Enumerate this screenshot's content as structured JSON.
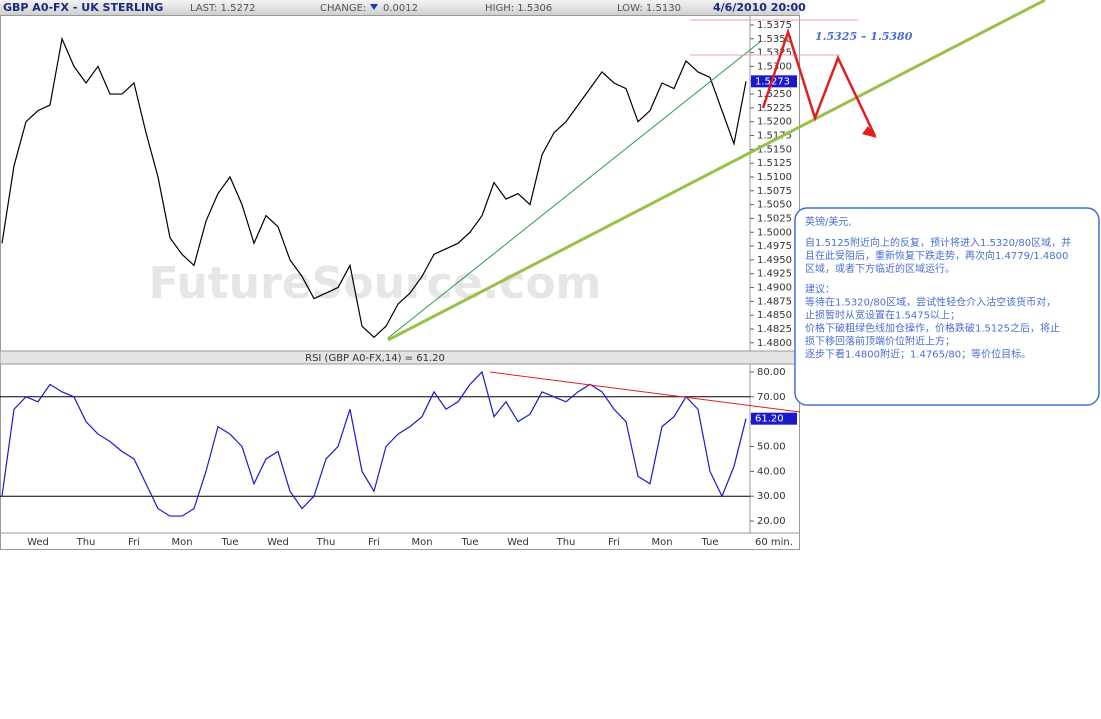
{
  "header": {
    "symbol": "GBP A0-FX - UK STERLING",
    "last": "LAST: 1.5272",
    "change_label": "CHANGE:",
    "change": "0.0012",
    "high": "HIGH: 1.5306",
    "low": "LOW: 1.5130",
    "datetime": "4/6/2010 20:00"
  },
  "watermark": "FutureSource.com",
  "annotation": "1.5325 – 1.5380",
  "note": [
    "英镑/美元,",
    "自1.5125附近向上的反复，预计将进入1.5320/80区域，并",
    "且在此受阻后，重新恢复下跌走势，再次向1.4779/1.4800",
    "区域，或者下方临近的区域运行。",
    "建议：",
    "等待在1.5320/80区域，尝试性轻仓介入沽空该货币对，",
    "止损暂时从宽设置在1.5475以上；",
    "价格下破粗绿色线加仓操作，价格跌破1.5125之后，将止",
    "损下移回落前顶端价位附近上方；",
    "逐步下看1.4800附近；1.4765/80；等价位目标。"
  ],
  "chart_data": [
    {
      "type": "line",
      "color": "#000000",
      "last_label": "1.5273",
      "values": [
        1.498,
        1.512,
        1.52,
        1.522,
        1.523,
        1.535,
        1.53,
        1.527,
        1.53,
        1.525,
        1.525,
        1.527,
        1.518,
        1.51,
        1.499,
        1.496,
        1.494,
        1.502,
        1.507,
        1.51,
        1.505,
        1.498,
        1.503,
        1.501,
        1.495,
        1.492,
        1.488,
        1.489,
        1.49,
        1.494,
        1.483,
        1.481,
        1.483,
        1.487,
        1.489,
        1.492,
        1.496,
        1.497,
        1.498,
        1.5,
        1.503,
        1.509,
        1.506,
        1.507,
        1.505,
        1.514,
        1.518,
        1.52,
        1.523,
        1.526,
        1.529,
        1.527,
        1.526,
        1.52,
        1.522,
        1.527,
        1.526,
        1.531,
        1.529,
        1.528,
        1.522,
        1.516,
        1.5273
      ],
      "ylim": [
        1.4787,
        1.5393
      ],
      "yticks": [
        {
          "value": 1.48,
          "label": "1.4800"
        },
        {
          "value": 1.4825,
          "label": "1.4825"
        },
        {
          "value": 1.485,
          "label": "1.4850"
        },
        {
          "value": 1.4875,
          "label": "1.4875"
        },
        {
          "value": 1.49,
          "label": "1.4900"
        },
        {
          "value": 1.4925,
          "label": "1.4925"
        },
        {
          "value": 1.495,
          "label": "1.4950"
        },
        {
          "value": 1.4975,
          "label": "1.4975"
        },
        {
          "value": 1.5,
          "label": "1.5000"
        },
        {
          "value": 1.5025,
          "label": "1.5025"
        },
        {
          "value": 1.505,
          "label": "1.5050"
        },
        {
          "value": 1.5075,
          "label": "1.5075"
        },
        {
          "value": 1.51,
          "label": "1.5100"
        },
        {
          "value": 1.5125,
          "label": "1.5125"
        },
        {
          "value": 1.515,
          "label": "1.5150"
        },
        {
          "value": 1.5175,
          "label": "1.5175"
        },
        {
          "value": 1.52,
          "label": "1.5200"
        },
        {
          "value": 1.5225,
          "label": "1.5225"
        },
        {
          "value": 1.525,
          "label": "1.5250"
        },
        {
          "value": 1.5275,
          "label": "1.5275"
        },
        {
          "value": 1.53,
          "label": "1.5300"
        },
        {
          "value": 1.5325,
          "label": "1.5325"
        },
        {
          "value": 1.535,
          "label": "1.5350"
        },
        {
          "value": 1.5375,
          "label": "1.5375"
        }
      ]
    },
    {
      "type": "line",
      "title": "RSI (GBP A0-FX,14) = 61.20",
      "color": "#1a1acc",
      "last_label": "61.20",
      "x_label": "60 min.",
      "categories": [
        null,
        null,
        null,
        "Wed",
        null,
        null,
        null,
        "Thu",
        null,
        null,
        null,
        "Fri",
        null,
        null,
        null,
        "Mon",
        null,
        null,
        null,
        "Tue",
        null,
        null,
        null,
        "Wed",
        null,
        null,
        null,
        "Thu",
        null,
        null,
        null,
        "Fri",
        null,
        null,
        null,
        "Mon",
        null,
        null,
        null,
        "Tue",
        null,
        null,
        null,
        "Wed",
        null,
        null,
        null,
        "Thu",
        null,
        null,
        null,
        "Fri",
        null,
        null,
        null,
        "Mon",
        null,
        null,
        null,
        "Tue",
        null,
        null,
        null
      ],
      "values": [
        30,
        65,
        70,
        68,
        75,
        72,
        70,
        60,
        55,
        52,
        48,
        45,
        35,
        25,
        22,
        22,
        25,
        40,
        58,
        55,
        50,
        35,
        45,
        48,
        32,
        25,
        30,
        45,
        50,
        65,
        40,
        32,
        50,
        55,
        58,
        62,
        72,
        65,
        68,
        75,
        80,
        62,
        68,
        60,
        63,
        72,
        70,
        68,
        72,
        75,
        72,
        65,
        60,
        38,
        35,
        58,
        62,
        70,
        65,
        40,
        30,
        42,
        61.2
      ],
      "ylim": [
        16.4,
        82.8
      ],
      "yticks": [
        {
          "value": 20,
          "label": "20.00"
        },
        {
          "value": 30,
          "label": "30.00"
        },
        {
          "value": 40,
          "label": "40.00"
        },
        {
          "value": 50,
          "label": "50.00"
        },
        {
          "value": 60,
          "label": "60.00"
        },
        {
          "value": 70,
          "label": "70.00"
        },
        {
          "value": 80,
          "label": "80.00"
        }
      ],
      "levels": [
        70,
        30
      ]
    }
  ]
}
